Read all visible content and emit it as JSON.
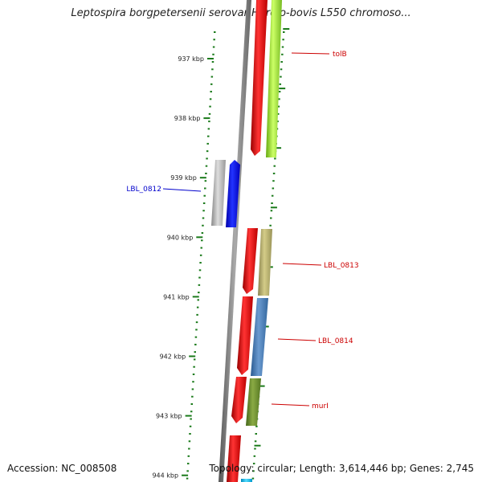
{
  "title": "Leptospira borgpetersenii serovar Hardjo-bovis L550 chromoso...",
  "footer": {
    "accession": "Accession: NC_008508",
    "summary": "Topology: circular; Length: 3,614,446 bp; Genes: 2,745"
  },
  "ruler": {
    "ticks": [
      "937 kbp",
      "938 kbp",
      "939 kbp",
      "940 kbp",
      "941 kbp",
      "942 kbp",
      "943 kbp",
      "944 kbp"
    ]
  },
  "gene_labels": [
    {
      "text": "tolB",
      "color": "#cc0000"
    },
    {
      "text": "LBL_0812",
      "color": "#0000cc"
    },
    {
      "text": "LBL_0813",
      "color": "#cc0000"
    },
    {
      "text": "LBL_0814",
      "color": "#cc0000"
    },
    {
      "text": "murI",
      "color": "#cc0000"
    }
  ],
  "colors": {
    "backbone": "#888888",
    "ticks": "#1a7a1a",
    "cds_forward": "#ee1111",
    "tolB_gene": "#99ee33",
    "LBL_0812_reverse": "#0000ee",
    "LBL_0812_gray": "#bbbbbb",
    "LBL_0813_gene": "#b8b070",
    "LBL_0814_gene": "#4a80b8",
    "murI_gene": "#6a8a2a",
    "cyan_gene": "#22bbee"
  }
}
